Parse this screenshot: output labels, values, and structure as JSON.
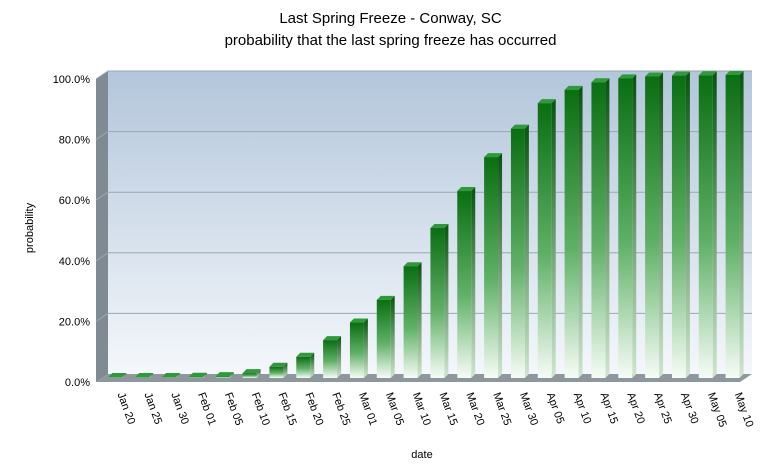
{
  "chart_data": {
    "type": "bar",
    "title": "Last Spring Freeze - Conway, SC",
    "subtitle": "probability that the last spring freeze has occurred",
    "xlabel": "date",
    "ylabel": "probability",
    "ylim": [
      0,
      100
    ],
    "ytick_values": [
      0,
      20,
      40,
      60,
      80,
      100
    ],
    "ytick_labels": [
      "0.0%",
      "20.0%",
      "40.0%",
      "60.0%",
      "80.0%",
      "100.0%"
    ],
    "grid": true,
    "categories": [
      "Jan 20",
      "Jan 25",
      "Jan 30",
      "Feb 01",
      "Feb 05",
      "Feb 10",
      "Feb 15",
      "Feb 20",
      "Feb 25",
      "Mar 01",
      "Mar 05",
      "Mar 10",
      "Mar 15",
      "Mar 20",
      "Mar 25",
      "Mar 30",
      "Apr 05",
      "Apr 10",
      "Apr 15",
      "Apr 20",
      "Apr 25",
      "Apr 30",
      "May 05",
      "May 10"
    ],
    "values": [
      0.1,
      0.2,
      0.3,
      0.4,
      0.6,
      1.6,
      3.7,
      7.0,
      12.5,
      18.3,
      25.8,
      36.9,
      49.5,
      61.7,
      72.9,
      82.3,
      90.7,
      95.1,
      97.6,
      98.9,
      99.5,
      99.8,
      99.9,
      100.0
    ],
    "colors": {
      "bar_top": "#0a6e12",
      "bar_bottom": "#f6fcf6",
      "bar_side": "#07540d",
      "bar_cap": "#2f9a3a",
      "plot_bg_top": "#b3c6db",
      "plot_bg_bottom": "#f4f7fb",
      "wall_side": "#7f8a92",
      "floor": "#8e979e",
      "gridline": "#9aa7b3"
    }
  }
}
